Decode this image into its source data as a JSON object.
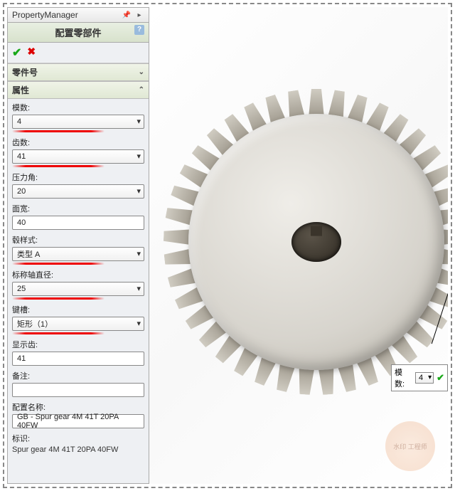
{
  "header": {
    "title": "PropertyManager"
  },
  "titlebar": {
    "text": "配置零部件",
    "help": "?"
  },
  "sections": {
    "part_number": "零件号",
    "properties": "属性"
  },
  "fields": {
    "module": {
      "label": "模数:",
      "value": "4",
      "highlight": true
    },
    "teeth": {
      "label": "齿数:",
      "value": "41",
      "highlight": true
    },
    "pressure_angle": {
      "label": "压力角:",
      "value": "20",
      "highlight": false
    },
    "face_width": {
      "label": "面宽:",
      "value": "40",
      "highlight": false
    },
    "hub_style": {
      "label": "毂样式:",
      "value": "类型 A",
      "highlight": true
    },
    "nominal_shaft": {
      "label": "标称轴直径:",
      "value": "25",
      "highlight": true
    },
    "keyway": {
      "label": "键槽:",
      "value": "矩形（1）",
      "highlight": true
    },
    "show_teeth": {
      "label": "显示齿:",
      "value": "41",
      "highlight": false
    },
    "remark": {
      "label": "备注:",
      "value": "",
      "highlight": false
    },
    "config_name": {
      "label": "配置名称:",
      "value": "GB - Spur gear 4M 41T 20PA 40FW",
      "highlight": false
    },
    "tag": {
      "label": "标识:",
      "value": "Spur gear 4M 41T 20PA 40FW",
      "highlight": false
    }
  },
  "float": {
    "label": "模数:",
    "value": "4"
  },
  "gear": {
    "teeth": 41
  },
  "watermark": "水印 工程师"
}
